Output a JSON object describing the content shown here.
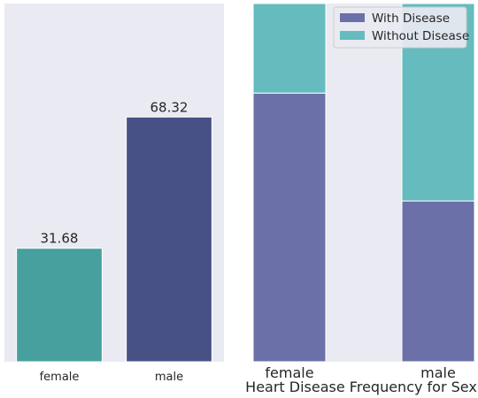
{
  "chart_data": [
    {
      "type": "bar",
      "categories": [
        "female",
        "male"
      ],
      "values": [
        31.68,
        68.32
      ],
      "value_labels": [
        "31.68",
        "68.32"
      ],
      "ylim": [
        0,
        100
      ],
      "grid": false,
      "colors": [
        "#47a09d",
        "#485185"
      ],
      "background": "#eaeaf2"
    },
    {
      "type": "bar",
      "stacked": true,
      "categories": [
        "female",
        "male"
      ],
      "series": [
        {
          "name": "With Disease",
          "values": [
            75.0,
            44.9
          ],
          "color": "#6b70a8"
        },
        {
          "name": "Without Disease",
          "values": [
            25.0,
            55.1
          ],
          "color": "#65bbbe"
        }
      ],
      "ylim": [
        0,
        100
      ],
      "xlabel": "Heart Disease Frequency for Sex",
      "legend": "top-right",
      "grid": false,
      "background": "#eaeaf2"
    }
  ]
}
